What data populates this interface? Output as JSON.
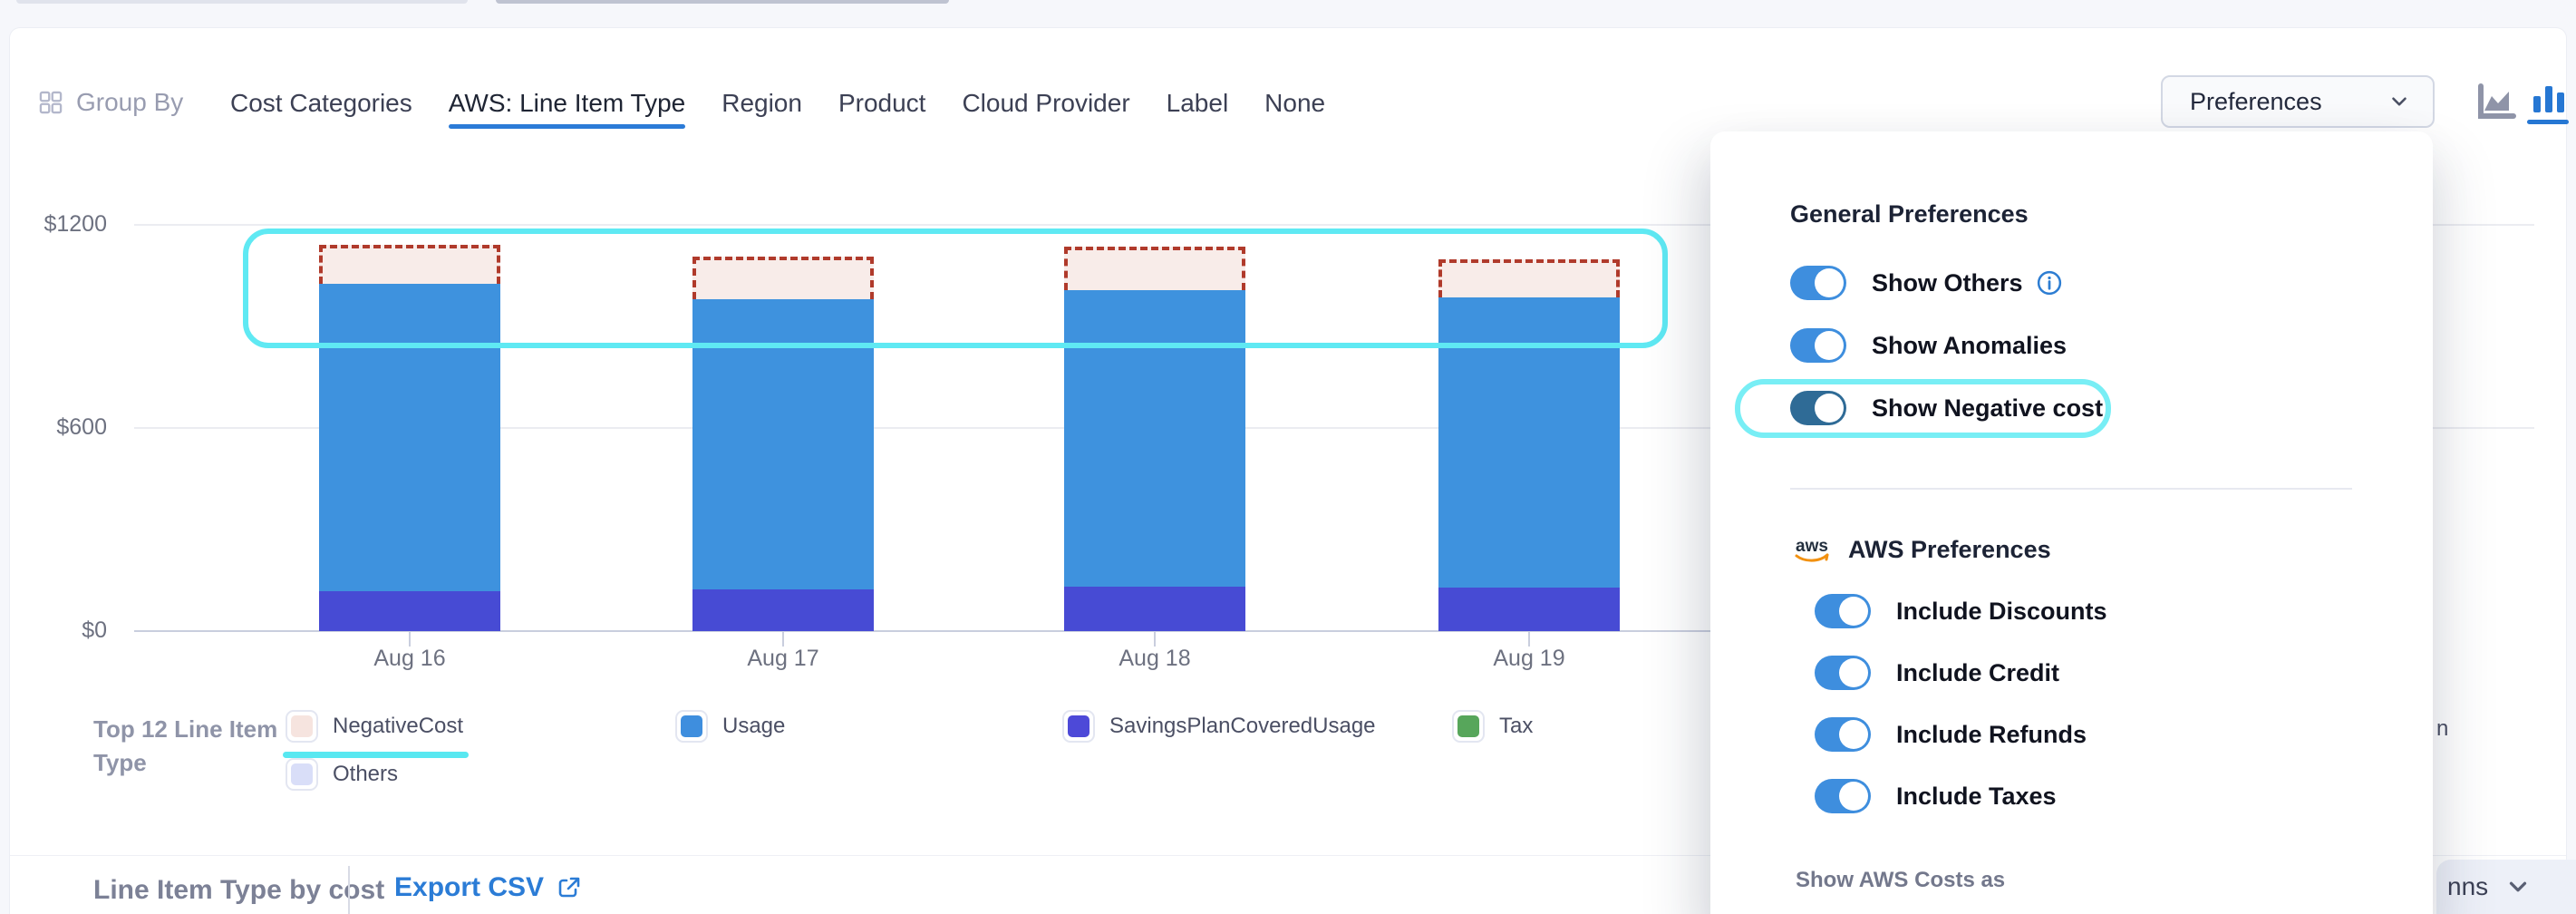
{
  "toolbar": {
    "group_by_label": "Group By",
    "tabs": [
      {
        "label": "Cost Categories",
        "active": false
      },
      {
        "label": "AWS: Line Item Type",
        "active": true
      },
      {
        "label": "Region",
        "active": false
      },
      {
        "label": "Product",
        "active": false
      },
      {
        "label": "Cloud Provider",
        "active": false
      },
      {
        "label": "Label",
        "active": false
      },
      {
        "label": "None",
        "active": false
      }
    ],
    "preferences_button_label": "Preferences",
    "chart_type_active": "bar-chart"
  },
  "chart_data": {
    "type": "bar",
    "stacked": true,
    "categories": [
      "Aug 16",
      "Aug 17",
      "Aug 18",
      "Aug 19"
    ],
    "ylim": [
      0,
      1200
    ],
    "ytick_labels": [
      "$1200",
      "$600",
      "$0"
    ],
    "ytick_values": [
      1200,
      600,
      0
    ],
    "grid": "horizontal",
    "legend_position": "bottom",
    "series": [
      {
        "name": "SavingsPlanCoveredUsage",
        "color": "#474bd4",
        "style": "solid",
        "values": [
          118,
          123,
          131,
          129
        ]
      },
      {
        "name": "Usage",
        "color": "#3e92de",
        "style": "solid",
        "values": [
          908,
          857,
          876,
          857
        ]
      },
      {
        "name": "Tax",
        "color": "#57a65b",
        "style": "solid",
        "values": [
          0,
          0,
          0,
          0
        ]
      },
      {
        "name": "Others",
        "color": "#d9def8",
        "style": "solid",
        "values": [
          0,
          0,
          0,
          0
        ]
      },
      {
        "name": "NegativeCost",
        "color": "#b03a2b",
        "fill": "#f8ece9",
        "style": "dashed-overlay",
        "values": [
          114,
          126,
          129,
          112
        ]
      }
    ],
    "annotations": [
      "negative-cost-bar-tops-highlight",
      "negative-cost-legend-underline"
    ]
  },
  "legend": {
    "group_label": "Top 12 Line Item Type",
    "items": [
      {
        "label": "NegativeCost",
        "color": "#f6e4df",
        "highlighted": true
      },
      {
        "label": "Usage",
        "color": "#3e8ede",
        "highlighted": false
      },
      {
        "label": "SavingsPlanCoveredUsage",
        "color": "#4d49d8",
        "highlighted": false
      },
      {
        "label": "Tax",
        "color": "#57a65b",
        "highlighted": false
      },
      {
        "label": "Others",
        "color": "#d9def8",
        "highlighted": false
      }
    ],
    "overflow_partial_text": "n"
  },
  "footer": {
    "title": "Line Item Type by cost",
    "export_label": "Export CSV",
    "columns_partial_label": "nns"
  },
  "preferences_panel": {
    "general_heading": "General Preferences",
    "general_toggles": [
      {
        "label": "Show Others",
        "state": "on",
        "info": true,
        "highlighted": false
      },
      {
        "label": "Show Anomalies",
        "state": "on",
        "info": false,
        "highlighted": false
      },
      {
        "label": "Show Negative cost",
        "state": "on",
        "info": false,
        "highlighted": true
      }
    ],
    "aws_heading": "AWS Preferences",
    "aws_logo_text": "aws",
    "aws_toggles": [
      {
        "label": "Include Discounts",
        "state": "on"
      },
      {
        "label": "Include Credit",
        "state": "on"
      },
      {
        "label": "Include Refunds",
        "state": "on"
      },
      {
        "label": "Include Taxes",
        "state": "on"
      }
    ],
    "show_costs_as_label": "Show AWS Costs as"
  },
  "colors": {
    "accent_blue": "#2b7bd7",
    "toggle_on": "#3e8ede",
    "toggle_on_dark": "#2f6b96",
    "highlight_cyan": "#5fe9f3",
    "negative_dash": "#b03a2b",
    "negative_fill": "#f8ece9",
    "usage_blue": "#3e92de",
    "savings_purple": "#474bd4"
  }
}
